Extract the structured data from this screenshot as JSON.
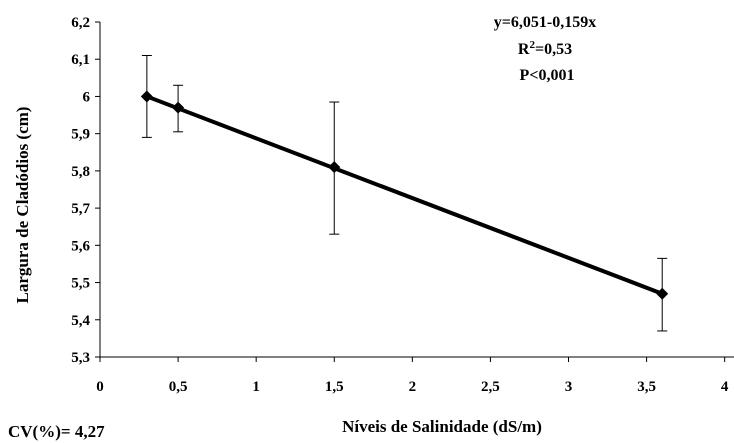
{
  "chart_data": {
    "type": "scatter",
    "x": [
      0.3,
      0.5,
      1.5,
      3.6
    ],
    "y": [
      6.0,
      5.97,
      5.81,
      5.47
    ],
    "error_lower": [
      5.89,
      5.905,
      5.63,
      5.37
    ],
    "error_upper": [
      6.11,
      6.03,
      5.985,
      5.565
    ],
    "trendline": {
      "intercept": 6.051,
      "slope": -0.159,
      "x_range": [
        0.3,
        3.6
      ]
    },
    "xlabel": "Níveis de Salinidade  (dS/m)",
    "ylabel": "Largura de Cladódios (cm)",
    "xlim": [
      0,
      4
    ],
    "ylim": [
      5.3,
      6.2
    ],
    "x_ticks": [
      "0",
      "0,5",
      "1",
      "1,5",
      "2",
      "2,5",
      "3",
      "3,5",
      "4"
    ],
    "y_ticks": [
      "5,3",
      "5,4",
      "5,5",
      "5,6",
      "5,7",
      "5,8",
      "5,9",
      "6",
      "6,1",
      "6,2"
    ],
    "grid": false,
    "marker": "diamond",
    "color": "#000000",
    "annotations": {
      "equation": "y=6,051-0,159x",
      "r2_prefix": "R",
      "r2_sup": "2",
      "r2_value": "=0,53",
      "p_value": "P<0,001"
    }
  },
  "footnote": "CV(%)= 4,27"
}
